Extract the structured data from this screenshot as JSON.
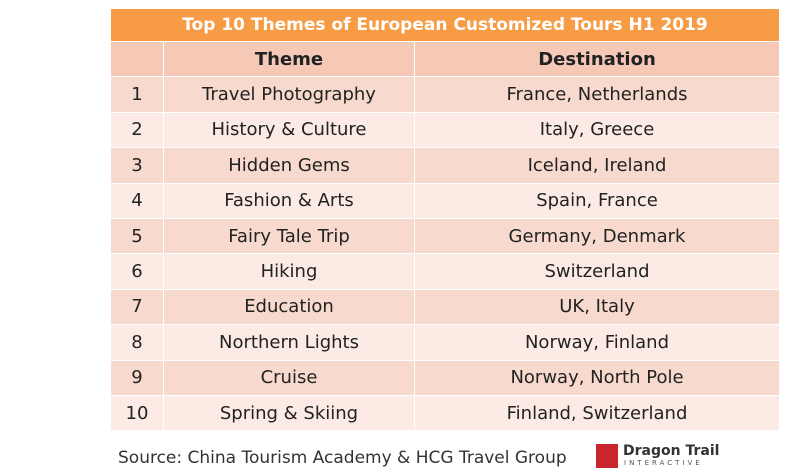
{
  "table": {
    "title": "Top 10 Themes of European Customized Tours H1 2019",
    "headers": [
      "Theme",
      "Destination"
    ],
    "rows": [
      [
        "1",
        "Travel Photography",
        "France, Netherlands"
      ],
      [
        "2",
        "History & Culture",
        "Italy, Greece"
      ],
      [
        "3",
        "Hidden Gems",
        "Iceland, Ireland"
      ],
      [
        "4",
        "Fashion & Arts",
        "Spain, France"
      ],
      [
        "5",
        "Fairy Tale Trip",
        "Germany, Denmark"
      ],
      [
        "6",
        "Hiking",
        "Switzerland"
      ],
      [
        "7",
        "Education",
        "UK, Italy"
      ],
      [
        "8",
        "Northern Lights",
        "Norway, Finland"
      ],
      [
        "9",
        "Cruise",
        "Norway, North Pole"
      ],
      [
        "10",
        "Spring & Skiing",
        "Finland, Switzerland"
      ]
    ]
  },
  "footer": {
    "source": "Source: China Tourism Academy & HCG Travel Group",
    "logo_name": "Dragon Trail",
    "logo_sub": "INTERACTIVE"
  }
}
